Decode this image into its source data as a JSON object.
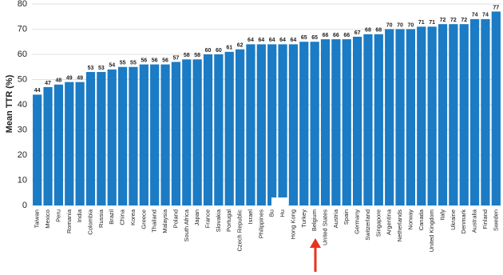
{
  "chart_data": {
    "type": "bar",
    "y_label": "Mean TTR (%)",
    "categories": [
      "Taiwan",
      "Mexico",
      "Peru",
      "Romania",
      "India",
      "Colombia",
      "Russia",
      "Brazil",
      "China",
      "Korea",
      "Greece",
      "Thailand",
      "Malaysia",
      "Poland",
      "South Africa",
      "Japan",
      "France",
      "Slovakia",
      "Portugal",
      "Czech Republic",
      "Israel",
      "Philippines",
      "Bu",
      "Hu",
      "Hong Kong",
      "Turkey",
      "Belgium",
      "United States",
      "Austria",
      "Spain",
      "Germany",
      "Switzerland",
      "Singapore",
      "Argentina",
      "Netherlands",
      "Norway",
      "Canada",
      "United Kingdom",
      "Italy",
      "Ukraine",
      "Denmark",
      "Australia",
      "Finland",
      "Sweden"
    ],
    "values": [
      44,
      47,
      48,
      49,
      49,
      53,
      53,
      54,
      55,
      55,
      56,
      56,
      56,
      57,
      58,
      58,
      60,
      60,
      61,
      62,
      64,
      64,
      64,
      64,
      64,
      65,
      65,
      66,
      66,
      66,
      67,
      68,
      68,
      70,
      70,
      70,
      71,
      71,
      72,
      72,
      72,
      74,
      74,
      77
    ],
    "color": "#1b7bc4",
    "ylim": [
      0,
      80
    ],
    "yticks": [
      0,
      10,
      20,
      30,
      40,
      50,
      60,
      70,
      80
    ],
    "grid": true
  }
}
